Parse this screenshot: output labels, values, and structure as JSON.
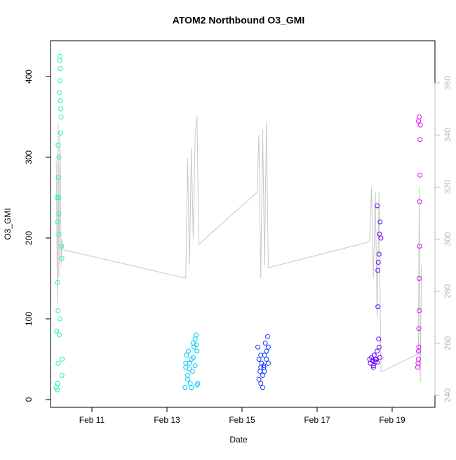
{
  "chart_data": {
    "type": "scatter",
    "title": "ATOM2 Northbound O3_GMI",
    "x_label": "Date",
    "y_label": "O3_GMI",
    "xlim": [
      9.897,
      20.14
    ],
    "xticks": [
      {
        "value": 11,
        "label": "Feb 11"
      },
      {
        "value": 13,
        "label": "Feb 13"
      },
      {
        "value": 15,
        "label": "Feb 15"
      },
      {
        "value": 17,
        "label": "Feb 17"
      },
      {
        "value": 19,
        "label": "Feb 19"
      }
    ],
    "ylim": [
      -9.6,
      444.4
    ],
    "yticks": [
      0,
      100,
      200,
      300,
      400
    ],
    "y2lim": [
      235.4,
      376.2
    ],
    "y2ticks": [
      240,
      260,
      280,
      300,
      320,
      340,
      360
    ],
    "series": [
      {
        "color": "#1ef5b0",
        "x": [
          10.08,
          10.09,
          10.1,
          10.1,
          10.11,
          10.12,
          10.12,
          10.13,
          10.14,
          10.15,
          10.16,
          10.17,
          10.18,
          10.19,
          10.2,
          10.2,
          10.21,
          10.05,
          10.06,
          10.07,
          10.08,
          10.09,
          10.1,
          10.11,
          10.12,
          10.13,
          10.14,
          10.15,
          10.16,
          10.17
        ],
        "values": [
          12,
          20,
          45,
          110,
          250,
          230,
          300,
          380,
          420,
          425,
          410,
          360,
          350,
          190,
          175,
          30,
          50,
          15,
          85,
          250,
          220,
          145,
          315,
          275,
          205,
          80,
          100,
          395,
          370,
          330
        ]
      },
      {
        "color": "#00c8ff",
        "x": [
          13.48,
          13.5,
          13.52,
          13.55,
          13.57,
          13.6,
          13.62,
          13.65,
          13.68,
          13.7,
          13.72,
          13.75,
          13.78,
          13.8,
          13.82,
          13.5,
          13.55,
          13.6,
          13.65,
          13.7,
          13.75,
          13.78,
          13.8
        ],
        "values": [
          15,
          40,
          55,
          30,
          60,
          45,
          20,
          50,
          35,
          70,
          65,
          75,
          80,
          60,
          20,
          45,
          25,
          38,
          15,
          52,
          42,
          68,
          18
        ]
      },
      {
        "color": "#1a3cff",
        "x": [
          15.42,
          15.45,
          15.48,
          15.5,
          15.52,
          15.55,
          15.58,
          15.6,
          15.62,
          15.65,
          15.68,
          15.7,
          15.45,
          15.5,
          15.55,
          15.6,
          15.65,
          15.7,
          15.5,
          15.58
        ],
        "values": [
          65,
          50,
          35,
          20,
          45,
          30,
          40,
          55,
          70,
          60,
          78,
          45,
          25,
          40,
          15,
          35,
          50,
          65,
          55,
          42
        ]
      },
      {
        "color": "#6a00ff",
        "x": [
          18.4,
          18.42,
          18.45,
          18.48,
          18.5,
          18.52,
          18.55,
          18.58,
          18.6,
          18.62,
          18.65,
          18.68,
          18.7,
          18.6,
          18.62,
          18.64,
          18.66,
          18.65,
          18.63,
          18.5,
          18.55,
          18.6,
          18.67
        ],
        "values": [
          50,
          45,
          52,
          48,
          40,
          55,
          47,
          50,
          60,
          160,
          180,
          220,
          200,
          240,
          115,
          75,
          205,
          65,
          170,
          42,
          50,
          46,
          52
        ]
      },
      {
        "color": "#e600ff",
        "x": [
          19.68,
          19.69,
          19.7,
          19.7,
          19.71,
          19.71,
          19.72,
          19.72,
          19.73,
          19.73,
          19.74,
          19.74,
          19.7,
          19.72,
          19.75
        ],
        "values": [
          40,
          45,
          50,
          60,
          65,
          88,
          110,
          150,
          190,
          245,
          278,
          322,
          345,
          350,
          340
        ]
      },
      {
        "type": "line",
        "axis": "y2",
        "color": "#c8c8c8",
        "x": [
          10.05,
          10.08,
          10.1,
          10.12,
          10.15,
          10.18,
          10.2,
          10.22,
          13.5,
          13.55,
          13.6,
          13.65,
          13.7,
          13.75,
          13.8,
          13.85,
          15.4,
          15.45,
          15.5,
          15.55,
          15.6,
          15.65,
          15.7,
          18.4,
          18.45,
          18.5,
          18.55,
          18.6,
          18.65,
          18.7,
          19.7,
          19.72,
          19.75,
          19.78
        ],
        "values": [
          330,
          275,
          345,
          285,
          340,
          290,
          300,
          296,
          285,
          331,
          290,
          335,
          300,
          340,
          347,
          298,
          318,
          340,
          285,
          342,
          290,
          345,
          289,
          299,
          320,
          285,
          318,
          270,
          318,
          249,
          256,
          320,
          245,
          290
        ]
      }
    ]
  }
}
